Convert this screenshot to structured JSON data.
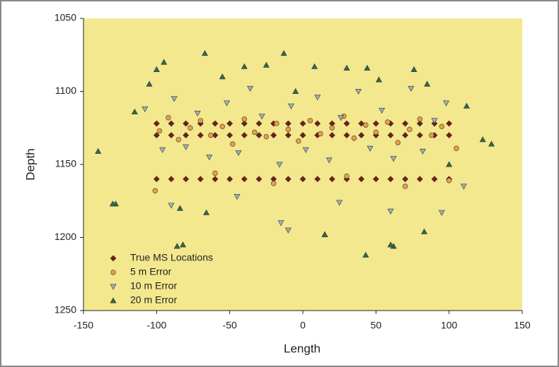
{
  "chart_data": {
    "type": "scatter",
    "x_label": "Length",
    "y_label": "Depth",
    "xlim": [
      -150,
      150
    ],
    "xticks": [
      -150,
      -100,
      -50,
      0,
      50,
      100,
      150
    ],
    "ylim": [
      1250,
      1050
    ],
    "yticks": [
      1050,
      1100,
      1150,
      1200,
      1250
    ],
    "background": "#f4e88e",
    "legend": "lower-left",
    "series": [
      {
        "name": "True MS Locations",
        "color": "#7a1c12",
        "marker": "diamond",
        "x": [
          -100,
          -90,
          -80,
          -70,
          -60,
          -50,
          -40,
          -30,
          -20,
          -10,
          0,
          10,
          20,
          30,
          40,
          50,
          60,
          70,
          80,
          90,
          100,
          -100,
          -90,
          -80,
          -70,
          -60,
          -50,
          -40,
          -30,
          -20,
          -10,
          0,
          10,
          20,
          30,
          40,
          50,
          60,
          70,
          80,
          90,
          100,
          -100,
          -90,
          -80,
          -70,
          -60,
          -50,
          -40,
          -30,
          -20,
          -10,
          0,
          10,
          20,
          30,
          40,
          50,
          60,
          70,
          80,
          90,
          100
        ],
        "values": [
          1122,
          1122,
          1122,
          1122,
          1122,
          1122,
          1122,
          1122,
          1122,
          1122,
          1122,
          1122,
          1122,
          1122,
          1122,
          1122,
          1122,
          1122,
          1122,
          1122,
          1122,
          1130,
          1130,
          1130,
          1130,
          1130,
          1130,
          1130,
          1130,
          1130,
          1130,
          1130,
          1130,
          1130,
          1130,
          1130,
          1130,
          1130,
          1130,
          1130,
          1130,
          1130,
          1160,
          1160,
          1160,
          1160,
          1160,
          1160,
          1160,
          1160,
          1160,
          1160,
          1160,
          1160,
          1160,
          1160,
          1160,
          1160,
          1160,
          1160,
          1160,
          1160,
          1160
        ]
      },
      {
        "name": "5 m Error",
        "color": "#e8a048",
        "marker": "circle",
        "x": [
          -98,
          -92,
          -85,
          -77,
          -70,
          -63,
          -55,
          -48,
          -40,
          -33,
          -25,
          -18,
          -10,
          -3,
          5,
          12,
          20,
          28,
          35,
          43,
          50,
          58,
          65,
          73,
          80,
          88,
          95,
          105,
          -101,
          -60,
          -20,
          30,
          70,
          100
        ],
        "values": [
          1127,
          1118,
          1133,
          1125,
          1120,
          1130,
          1124,
          1136,
          1119,
          1128,
          1131,
          1122,
          1126,
          1134,
          1120,
          1129,
          1125,
          1117,
          1132,
          1123,
          1128,
          1121,
          1135,
          1126,
          1119,
          1130,
          1124,
          1139,
          1168,
          1156,
          1163,
          1158,
          1165,
          1161
        ]
      },
      {
        "name": "10 m Error",
        "color": "#9fb0b4",
        "marker": "triangle-down",
        "x": [
          -108,
          -96,
          -88,
          -80,
          -72,
          -64,
          -52,
          -44,
          -36,
          -28,
          -16,
          -8,
          2,
          10,
          18,
          26,
          38,
          46,
          54,
          62,
          74,
          82,
          90,
          98,
          110,
          -90,
          -45,
          -10,
          25,
          60,
          95,
          -15
        ],
        "values": [
          1112,
          1140,
          1105,
          1138,
          1115,
          1145,
          1108,
          1142,
          1098,
          1117,
          1150,
          1110,
          1140,
          1104,
          1147,
          1118,
          1100,
          1139,
          1113,
          1146,
          1098,
          1141,
          1120,
          1108,
          1165,
          1178,
          1172,
          1195,
          1176,
          1182,
          1183,
          1190
        ]
      },
      {
        "name": "20 m Error",
        "color": "#2e6a4e",
        "marker": "triangle-up",
        "x": [
          -140,
          -128,
          -115,
          -105,
          -95,
          -86,
          -67,
          -55,
          -40,
          -25,
          -13,
          -5,
          8,
          15,
          30,
          44,
          52,
          62,
          76,
          85,
          100,
          112,
          123,
          129,
          -130,
          -84,
          -82,
          -66,
          15,
          43,
          60,
          83,
          -100
        ],
        "values": [
          1141,
          1177,
          1114,
          1095,
          1080,
          1206,
          1074,
          1090,
          1083,
          1082,
          1074,
          1100,
          1083,
          1198,
          1084,
          1084,
          1092,
          1206,
          1085,
          1095,
          1150,
          1110,
          1133,
          1136,
          1177,
          1180,
          1205,
          1183,
          1198,
          1212,
          1205,
          1196,
          1085
        ]
      }
    ]
  }
}
